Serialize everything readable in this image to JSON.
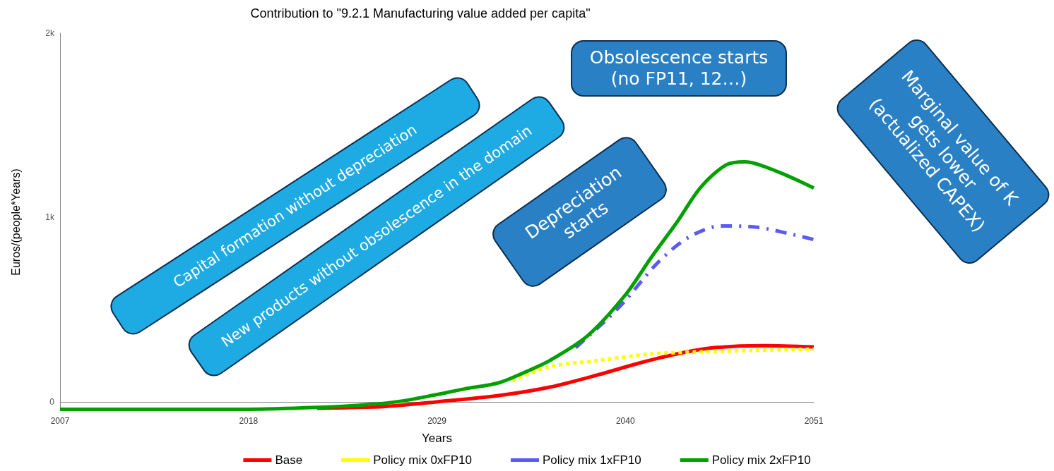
{
  "chart_data": {
    "type": "line",
    "title": "Contribution to \"9.2.1 Manufacturing value added per capita\"",
    "xlabel": "Years",
    "ylabel": "Euros/(people*Years)",
    "xlim": [
      2007,
      2051
    ],
    "xticks": [
      2007,
      2018,
      2029,
      2040,
      2051
    ],
    "ylim": [
      -50,
      2000
    ],
    "yticks": [
      {
        "value": 0,
        "label": "0"
      },
      {
        "value": 1000,
        "label": "1k"
      },
      {
        "value": 2000,
        "label": "2k"
      }
    ],
    "grid": false,
    "legend": "bottom",
    "marker": "none",
    "series": [
      {
        "name": "Base",
        "color": "#ff0000",
        "line_style": "solid",
        "x": [
          2022,
          2026,
          2029,
          2032.6,
          2035.6,
          2038.5,
          2040.8,
          2043,
          2045.2,
          2048.1,
          2051
        ],
        "values": [
          -35,
          -25,
          0,
          34,
          80,
          149,
          210,
          260,
          294,
          305,
          298
        ]
      },
      {
        "name": "Policy mix 0xFP10",
        "color": "#ffff00",
        "line_style": "dotted",
        "x": [
          2033.4,
          2035.6,
          2038.5,
          2041.5,
          2044.4,
          2047.4,
          2051
        ],
        "values": [
          114,
          191,
          225,
          260,
          271,
          279,
          286
        ]
      },
      {
        "name": "Policy mix 1xFP10",
        "color": "#5a5af5",
        "line_style": "dashed",
        "x": [
          2037.1,
          2039,
          2040,
          2041.9,
          2043.7,
          2045.6,
          2047.7,
          2049.9,
          2051
        ],
        "values": [
          294,
          454,
          550,
          756,
          893,
          954,
          947,
          905,
          880
        ]
      },
      {
        "name": "Policy mix 2xFP10",
        "color": "#00a000",
        "line_style": "solid",
        "x": [
          2007,
          2018,
          2022,
          2025,
          2027,
          2029,
          2030.6,
          2032.6,
          2034,
          2035.6,
          2037.8,
          2040,
          2041.5,
          2043,
          2044.4,
          2045.9,
          2047,
          2048.9,
          2051
        ],
        "values": [
          -40,
          -40,
          -30,
          -15,
          5,
          40,
          70,
          103,
          155,
          225,
          359,
          580,
          782,
          973,
          1164,
          1286,
          1302,
          1248,
          1160
        ]
      }
    ],
    "annotations": [
      "Capital formation without depreciation",
      "New products without obsolescence in the domain",
      "Depreciation starts",
      "Obsolescence starts (no FP11, 12…)",
      "Marginal value of K gets lower (actualized CAPEX)"
    ]
  }
}
